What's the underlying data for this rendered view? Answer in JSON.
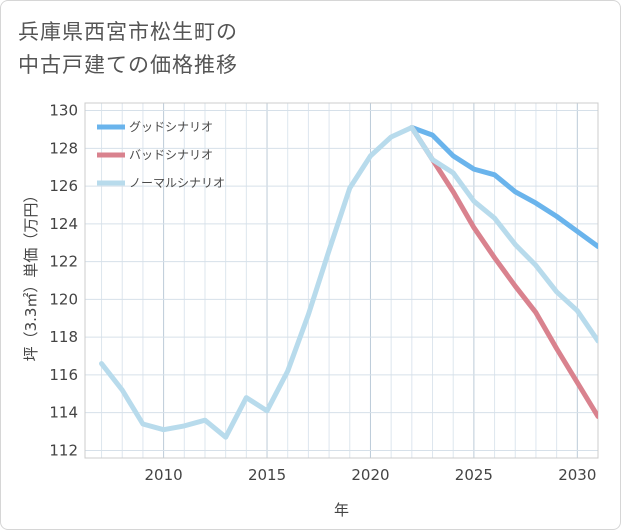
{
  "chart_data": {
    "type": "line",
    "title": "兵庫県西宮市松生町の\n中古戸建ての価格推移",
    "xlabel": "年",
    "ylabel": "坪（3.3㎡）単価（万円）",
    "xlim": [
      2006.2,
      2031
    ],
    "ylim": [
      111.6,
      130.4
    ],
    "xticks": [
      2010,
      2015,
      2020,
      2025,
      2030
    ],
    "yticks": [
      112,
      114,
      116,
      118,
      120,
      122,
      124,
      126,
      128,
      130
    ],
    "grid": true,
    "legend_position": "top-left",
    "series": [
      {
        "name": "グッドシナリオ",
        "color": "#6ab4ec",
        "x": [
          2022,
          2023,
          2024,
          2025,
          2026,
          2027,
          2028,
          2029,
          2030,
          2031
        ],
        "y": [
          129.1,
          128.7,
          127.6,
          126.9,
          126.6,
          125.7,
          125.1,
          124.4,
          123.6,
          122.8
        ]
      },
      {
        "name": "バッドシナリオ",
        "color": "#d9828e",
        "x": [
          2022,
          2023,
          2024,
          2025,
          2026,
          2027,
          2028,
          2029,
          2030,
          2031
        ],
        "y": [
          129.1,
          127.4,
          125.7,
          123.8,
          122.2,
          120.7,
          119.3,
          117.4,
          115.6,
          113.8
        ]
      },
      {
        "name": "ノーマルシナリオ",
        "color": "#b8dbec",
        "x": [
          2007,
          2008,
          2009,
          2010,
          2011,
          2012,
          2013,
          2014,
          2015,
          2016,
          2017,
          2018,
          2019,
          2020,
          2021,
          2022,
          2023,
          2024,
          2025,
          2026,
          2027,
          2028,
          2029,
          2030,
          2031
        ],
        "y": [
          116.6,
          115.2,
          113.4,
          113.1,
          113.3,
          113.6,
          112.7,
          114.8,
          114.1,
          116.2,
          119.2,
          122.6,
          125.9,
          127.6,
          128.6,
          129.1,
          127.4,
          126.7,
          125.2,
          124.3,
          122.9,
          121.8,
          120.4,
          119.4,
          117.8
        ]
      }
    ]
  }
}
